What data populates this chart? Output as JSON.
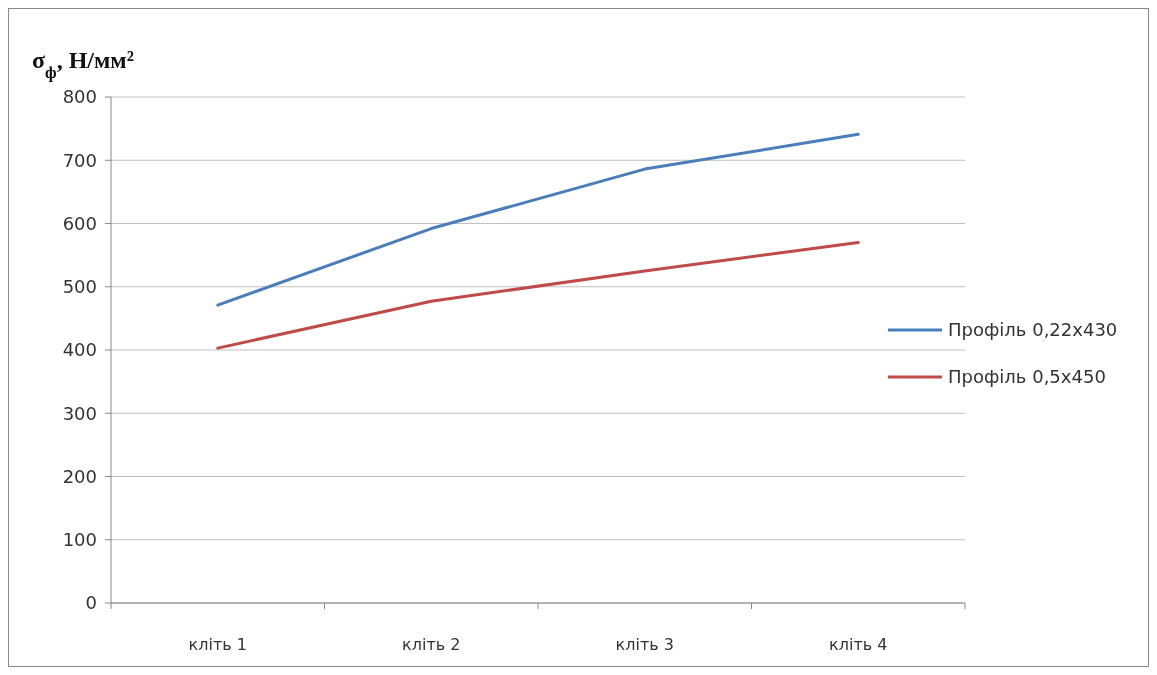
{
  "chart_data": {
    "type": "line",
    "ylabel": "σ$_{ф}$, Н/мм²",
    "categories": [
      "кліть 1",
      "кліть 2",
      "кліть 3",
      "кліть 4"
    ],
    "series": [
      {
        "name": "Профіль 0,22x430",
        "color": "#4a7ebb",
        "values": [
          471,
          592,
          686,
          741
        ]
      },
      {
        "name": "Профіль 0,5x450",
        "color": "#be4b48",
        "values": [
          403,
          477,
          525,
          570
        ]
      }
    ],
    "ylim": [
      0,
      800
    ],
    "yticks": [
      0,
      100,
      200,
      300,
      400,
      500,
      600,
      700,
      800
    ],
    "grid": "y",
    "legend": "right",
    "marker": "none",
    "line_style": "solid"
  }
}
